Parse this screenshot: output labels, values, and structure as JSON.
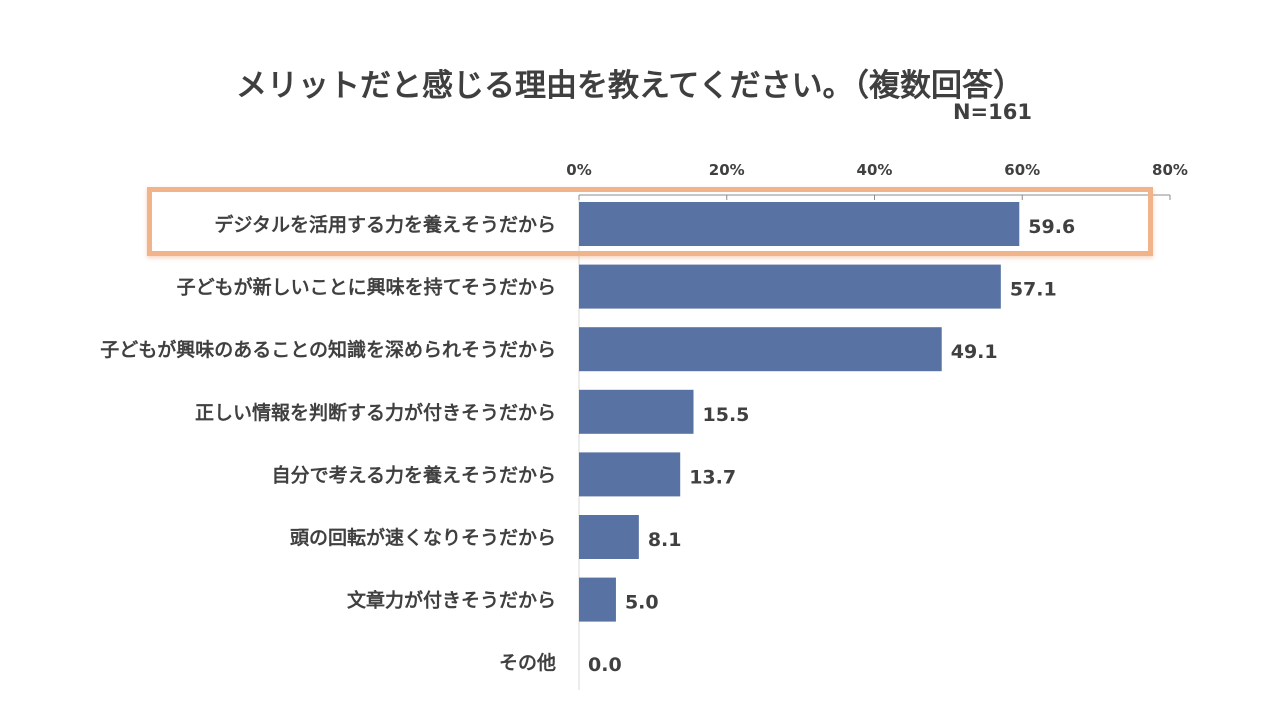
{
  "chart_data": {
    "type": "bar",
    "orientation": "horizontal",
    "title": "メリットだと感じる理由を教えてください。（複数回答）",
    "subtitle": "N=161",
    "xlabel": "",
    "ylabel": "",
    "xlim": [
      0,
      80
    ],
    "x_ticks": [
      0,
      20,
      40,
      60,
      80
    ],
    "x_tick_labels": [
      "0%",
      "20%",
      "40%",
      "60%",
      "80%"
    ],
    "axis_position": "top",
    "grid": false,
    "categories": [
      "デジタルを活用する力を養えそうだから",
      "子どもが新しいことに興味を持てそうだから",
      "子どもが興味のあることの知識を深められそうだから",
      "正しい情報を判断する力が付きそうだから",
      "自分で考える力を養えそうだから",
      "頭の回転が速くなりそうだから",
      "文章力が付きそうだから",
      "その他"
    ],
    "values": [
      59.6,
      57.1,
      49.1,
      15.5,
      13.7,
      8.1,
      5.0,
      0.0
    ],
    "value_labels": [
      "59.6",
      "57.1",
      "49.1",
      "15.5",
      "13.7",
      "8.1",
      "5.0",
      "0.0"
    ],
    "highlighted_category_index": 0,
    "bar_color": "#5872a3",
    "highlight_color": "#f0b38a"
  }
}
